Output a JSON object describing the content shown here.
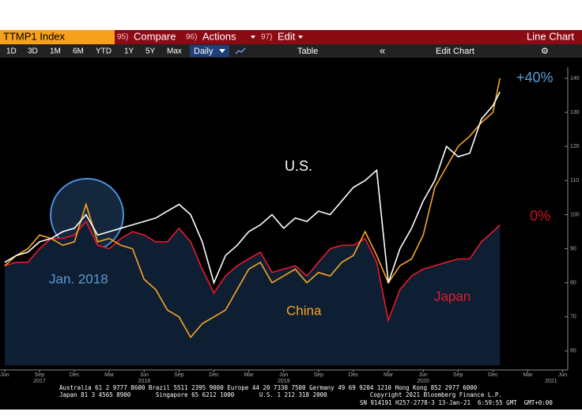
{
  "toolbar": {
    "ticker": "TTMP1 Index",
    "menus": [
      {
        "num": "95)",
        "label": "Compare"
      },
      {
        "num": "96)",
        "label": "Actions"
      },
      {
        "num": "97)",
        "label": "Edit"
      }
    ],
    "view": "Line Chart",
    "ranges": [
      "1D",
      "3D",
      "1M",
      "6M",
      "YTD",
      "1Y",
      "5Y",
      "Max"
    ],
    "frequency": "Daily",
    "table": "Table",
    "edit_chart": "Edit Chart"
  },
  "chart_data": {
    "type": "line",
    "x": [
      5,
      6,
      7,
      8,
      9,
      10,
      11,
      12,
      13,
      14,
      15,
      16,
      17,
      18,
      19,
      20,
      21,
      22,
      23,
      24,
      25,
      26,
      27,
      28,
      29,
      30,
      31,
      32,
      33,
      34,
      35,
      36,
      37,
      38,
      39,
      40,
      41,
      42,
      43,
      44,
      45,
      46,
      47,
      47.6
    ],
    "series": [
      {
        "name": "Japan",
        "color": "#e8192c",
        "area": "#0f1f33",
        "values": [
          85,
          86,
          86,
          90,
          93,
          93,
          94,
          98,
          91,
          90,
          93,
          95,
          94,
          92,
          92,
          96,
          92,
          84,
          77,
          82,
          85,
          87,
          89,
          83,
          84,
          85,
          82,
          86,
          90,
          91,
          91,
          93,
          86,
          69,
          78,
          82,
          84,
          85,
          86,
          87,
          87,
          92,
          95,
          97
        ]
      },
      {
        "name": "China",
        "color": "#f5a623",
        "values": [
          85,
          88,
          90,
          94,
          93,
          91,
          92,
          103,
          92,
          93,
          91,
          90,
          81,
          78,
          72,
          70,
          64,
          68,
          70,
          72,
          78,
          84,
          86,
          80,
          82,
          84,
          80,
          83,
          82,
          86,
          88,
          95,
          88,
          80,
          85,
          87,
          94,
          108,
          114,
          120,
          123,
          127,
          130,
          140
        ]
      },
      {
        "name": "U.S.",
        "color": "#ffffff",
        "values": [
          86,
          88,
          89,
          92,
          93,
          95,
          96,
          100,
          94,
          95,
          96,
          97,
          98,
          99,
          101,
          103,
          100,
          92,
          80,
          88,
          91,
          95,
          97,
          100,
          96,
          99,
          98,
          101,
          100,
          104,
          108,
          110,
          113,
          80,
          90,
          96,
          104,
          110,
          120,
          117,
          118,
          128,
          132,
          136
        ]
      }
    ],
    "xlim": [
      4.6,
      53.3
    ],
    "xticks": [
      {
        "value": 5,
        "label": "Jun"
      },
      {
        "value": 8,
        "label": "Sep"
      },
      {
        "value": 11,
        "label": "Dec"
      },
      {
        "value": 14,
        "label": "Mar"
      },
      {
        "value": 17,
        "label": "Jun"
      },
      {
        "value": 20,
        "label": "Sep"
      },
      {
        "value": 23,
        "label": "Dec"
      },
      {
        "value": 26,
        "label": "Mar"
      },
      {
        "value": 29,
        "label": "Jun"
      },
      {
        "value": 32,
        "label": "Sep"
      },
      {
        "value": 35,
        "label": "Dec"
      },
      {
        "value": 38,
        "label": "Mar"
      },
      {
        "value": 41,
        "label": "Jun"
      },
      {
        "value": 44,
        "label": "Sep"
      },
      {
        "value": 47,
        "label": "Dec"
      },
      {
        "value": 50,
        "label": "Mar"
      },
      {
        "value": 53,
        "label": "Jun"
      }
    ],
    "xtick_years": [
      {
        "value": 8,
        "label": "2017"
      },
      {
        "value": 17,
        "label": "2018"
      },
      {
        "value": 29,
        "label": "2019"
      },
      {
        "value": 41,
        "label": "2020"
      },
      {
        "value": 52,
        "label": "2021"
      }
    ],
    "ylim": [
      55.8,
      143.25
    ],
    "yticks": [
      60,
      70,
      80,
      90,
      100,
      110,
      120,
      130,
      140
    ],
    "annotations": [
      {
        "text": "+40%",
        "color": "#5b9bd5"
      },
      {
        "text": "0%",
        "color": "#d41022"
      },
      {
        "text": "U.S.",
        "color": "#ffffff"
      },
      {
        "text": "China",
        "color": "#f5a623"
      },
      {
        "text": "Japan",
        "color": "#e8192c"
      },
      {
        "text": "Jan. 2018",
        "color": "#5b9bd5"
      }
    ]
  },
  "footer": {
    "lines": [
      "Australia 61 2 9777 8600 Brazil 5511 2395 9000 Europe 44 20 7330 7500 Germany 49 69 9204 1210 Hong Kong 852 2977 6000",
      "Japan 81 3 4565 8900       Singapore 65 6212 1000       U.S. 1 212 318 2000            Copyright 2021 Bloomberg Finance L.P.",
      "SN 914191 H257-2778-3 13-Jan-21  6:59:55 GMT  GMT+0:00"
    ]
  }
}
